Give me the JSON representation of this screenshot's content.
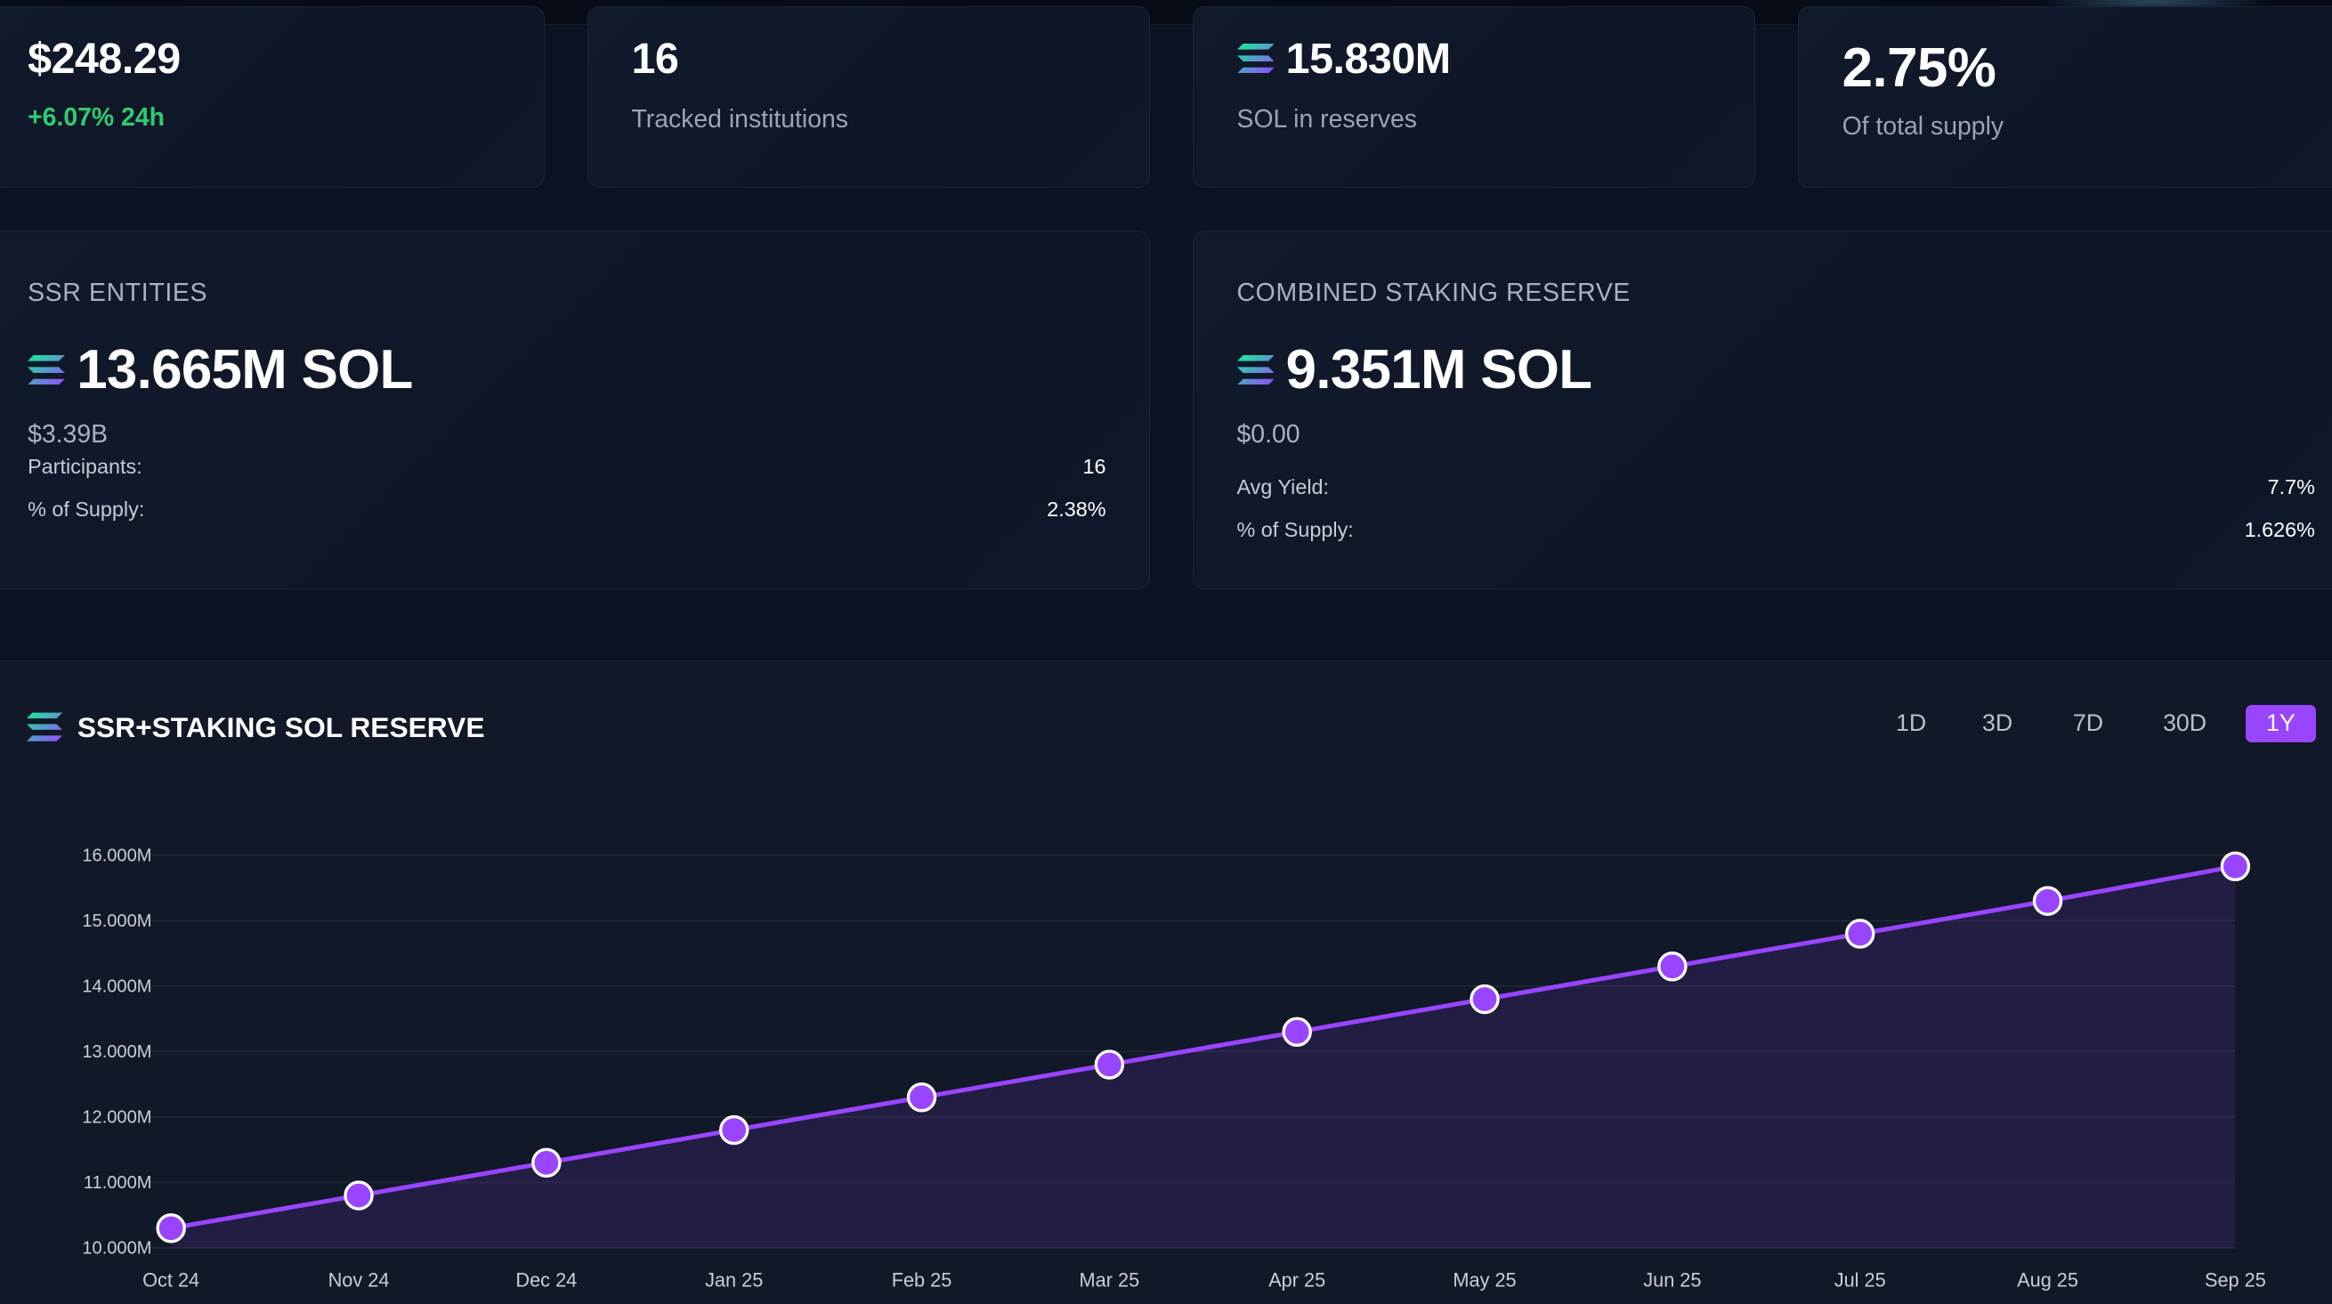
{
  "stats": {
    "price": {
      "value": "$248.29",
      "change": "+6.07% 24h"
    },
    "institutions": {
      "value": "16",
      "label": "Tracked institutions"
    },
    "reserves": {
      "value": "15.830M",
      "label": "SOL in reserves"
    },
    "supply": {
      "value": "2.75%",
      "label": "Of total supply"
    }
  },
  "ssr": {
    "title": "SSR ENTITIES",
    "amount": "13.665M SOL",
    "usd": "$3.39B",
    "rows": [
      {
        "label": "Participants:",
        "value": "16"
      },
      {
        "label": "% of Supply:",
        "value": "2.38%"
      }
    ]
  },
  "staking": {
    "title": "COMBINED STAKING RESERVE",
    "amount": "9.351M SOL",
    "usd": "$0.00",
    "rows": [
      {
        "label": "Avg Yield:",
        "value": "7.7%"
      },
      {
        "label": "% of Supply:",
        "value": "1.626%"
      }
    ]
  },
  "chart_section": {
    "title": "SSR+STAKING SOL RESERVE",
    "timeframes": [
      "1D",
      "3D",
      "7D",
      "30D",
      "1Y"
    ],
    "active_timeframe": "1Y"
  },
  "colors": {
    "accent": "#9945ff",
    "positive": "#2ecc71",
    "background": "#0b1221"
  },
  "icons": [
    "solana-logo-icon"
  ],
  "chart_data": {
    "type": "area",
    "categories": [
      "Oct 24",
      "Nov 24",
      "Dec 24",
      "Jan 25",
      "Feb 25",
      "Mar 25",
      "Apr 25",
      "May 25",
      "Jun 25",
      "Jul 25",
      "Aug 25",
      "Sep 25"
    ],
    "values": [
      10.3,
      10.8,
      11.3,
      11.8,
      12.3,
      12.8,
      13.3,
      13.8,
      14.3,
      14.8,
      15.3,
      15.83
    ],
    "y_ticks": [
      "10.000M",
      "11.000M",
      "12.000M",
      "13.000M",
      "14.000M",
      "15.000M",
      "16.000M"
    ],
    "ylim": [
      10,
      16
    ],
    "grid": true,
    "color": "#9945ff"
  }
}
